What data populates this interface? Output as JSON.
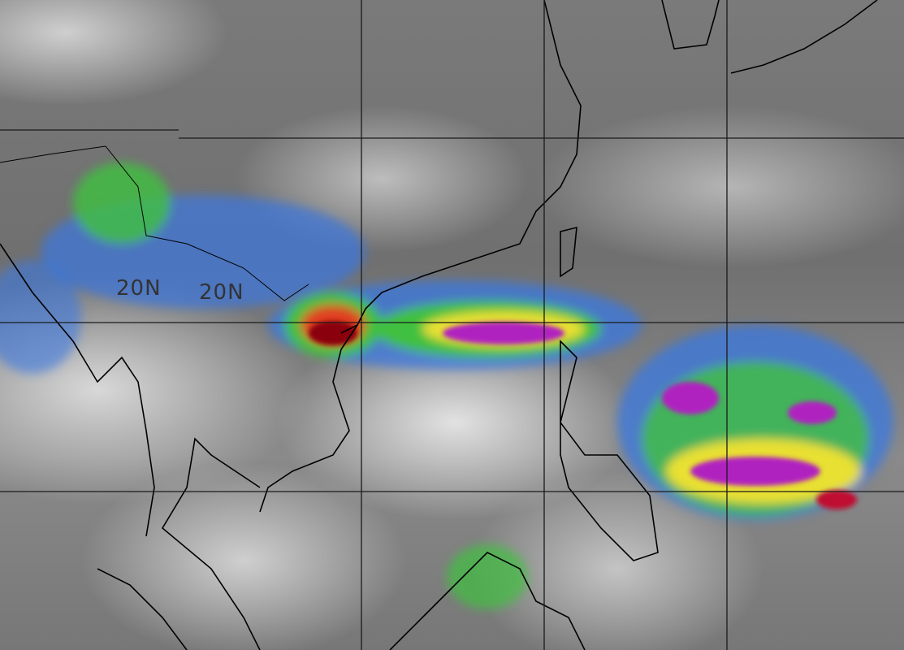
{
  "map": {
    "latitude_labels": [
      "20N",
      "20N"
    ],
    "colors": {
      "gridline": "#1a1a1a",
      "coastline": "#000000",
      "cloud_low": "#3a78e0",
      "cloud_mid": "#40c040",
      "cloud_high": "#e8e030",
      "cloud_higher": "#e04020",
      "cloud_top": "#b020c0"
    }
  }
}
